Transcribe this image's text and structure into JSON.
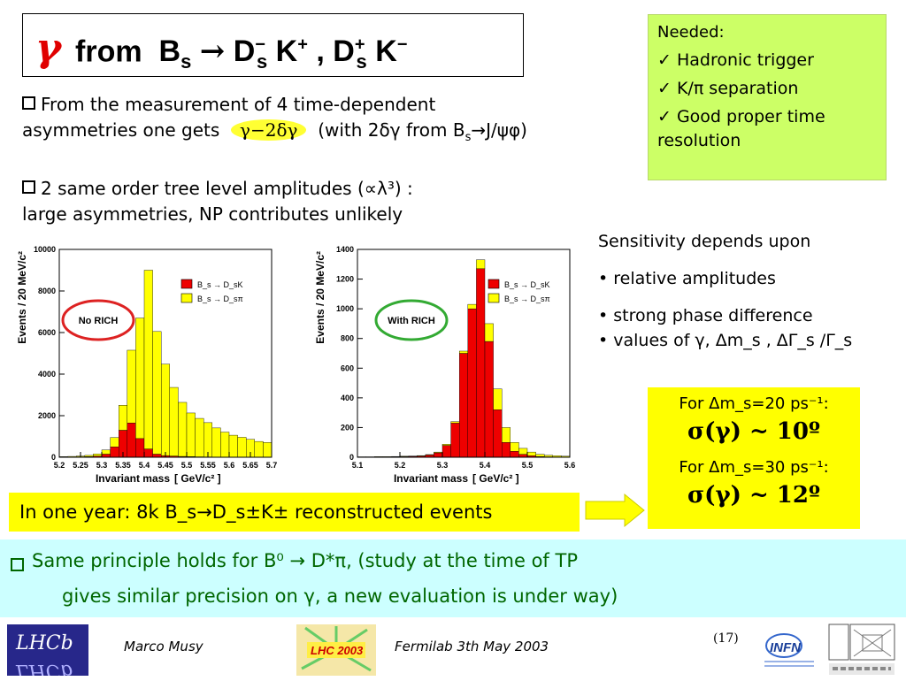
{
  "title": {
    "gamma": "γ",
    "from": "from",
    "text": "B_s → D⁻_s K⁺ , D⁺_s K⁻"
  },
  "needed": {
    "heading": "Needed:",
    "items": [
      "✓ Hadronic trigger",
      "✓ K/π separation",
      "✓ Good proper time resolution"
    ]
  },
  "bullets": {
    "b1_line1": "From the measurement of 4 time-dependent",
    "b1_line2_pre": "asymmetries one gets",
    "b1_highlight": "γ−2δγ",
    "b1_line2_post": "(with 2δγ from B",
    "b1_sub": "s",
    "b1_tail": "→J/ψφ)",
    "b2_line1": "2 same order tree level amplitudes (∝λ³) :",
    "b2_line2": "large asymmetries, NP contributes unlikely"
  },
  "sensitivity": {
    "heading": "Sensitivity depends upon",
    "items": [
      "• relative amplitudes",
      "• strong phase difference",
      "• values of γ, Δm_s , ΔΓ_s /Γ_s"
    ]
  },
  "for_box": {
    "l1": "For Δm_s=20 ps⁻¹:",
    "r1": "σ(γ) ~ 10º",
    "l2": "For Δm_s=30 ps⁻¹:",
    "r2": "σ(γ) ~ 12º"
  },
  "year_box": {
    "text": "In one year:   8k  B_s→D_s±K±  reconstructed events"
  },
  "bottom": {
    "line1": "Same principle holds for B⁰ → D*π,  (study at the time of TP",
    "line2": "gives similar precision on γ,  a new evaluation is under way)"
  },
  "footer": {
    "author": "Marco Musy",
    "event": "Fermilab 3th May 2003",
    "page": "(17)",
    "logo_lhc2003": "LHC 2003",
    "logo_lhcb": "LHCb",
    "logo_infn": "INFN"
  },
  "colors": {
    "bs_dsk": "#ee0000",
    "bs_dspi": "#ffff00",
    "accent_green": "#006600",
    "needed_bg": "#ccff66"
  },
  "chart_data": [
    {
      "type": "bar",
      "stacked": true,
      "annotation": "No RICH",
      "xlabel": "Invariant mass",
      "xunit": "[ GeV/c² ]",
      "ylabel": "Events / 20 MeV/c²",
      "xlim": [
        5.2,
        5.7
      ],
      "ylim": [
        0,
        10000
      ],
      "xticks": [
        "5.2",
        "5.25",
        "5.3",
        "5.35",
        "5.4",
        "5.45",
        "5.5",
        "5.55",
        "5.6",
        "5.65",
        "5.7"
      ],
      "yticks": [
        "0",
        "2000",
        "4000",
        "6000",
        "8000",
        "10000"
      ],
      "legend": [
        "B_s → D_sK",
        "B_s → D_sπ"
      ],
      "bin_edges": [
        5.2,
        5.22,
        5.24,
        5.26,
        5.28,
        5.3,
        5.32,
        5.34,
        5.36,
        5.38,
        5.4,
        5.42,
        5.44,
        5.46,
        5.48,
        5.5,
        5.52,
        5.54,
        5.56,
        5.58,
        5.6,
        5.62,
        5.64,
        5.66,
        5.68,
        5.7
      ],
      "series": [
        {
          "name": "B_s → D_sK",
          "values": [
            10,
            10,
            20,
            30,
            60,
            150,
            500,
            1300,
            1650,
            900,
            400,
            150,
            80,
            60,
            40,
            30,
            20,
            15,
            10,
            10,
            10,
            10,
            10,
            10,
            10
          ]
        },
        {
          "name": "B_s → D_sπ",
          "values": [
            20,
            30,
            40,
            60,
            100,
            200,
            450,
            1200,
            3500,
            5800,
            8600,
            5900,
            4400,
            3300,
            2600,
            2100,
            1850,
            1650,
            1400,
            1200,
            1050,
            950,
            850,
            750,
            700
          ]
        }
      ]
    },
    {
      "type": "bar",
      "stacked": true,
      "annotation": "With RICH",
      "xlabel": "Invariant mass",
      "xunit": "[ GeV/c² ]",
      "ylabel": "Events / 20 MeV/c²",
      "xlim": [
        5.1,
        5.6
      ],
      "ylim": [
        0,
        1400
      ],
      "xticks": [
        "5.1",
        "5.2",
        "5.3",
        "5.4",
        "5.5",
        "5.6"
      ],
      "yticks": [
        "0",
        "200",
        "400",
        "600",
        "800",
        "1000",
        "1200",
        "1400"
      ],
      "legend": [
        "B_s → D_sK",
        "B_s → D_sπ"
      ],
      "bin_edges": [
        5.1,
        5.12,
        5.14,
        5.16,
        5.18,
        5.2,
        5.22,
        5.24,
        5.26,
        5.28,
        5.3,
        5.32,
        5.34,
        5.36,
        5.38,
        5.4,
        5.42,
        5.44,
        5.46,
        5.48,
        5.5,
        5.52,
        5.54,
        5.56,
        5.58,
        5.6
      ],
      "series": [
        {
          "name": "B_s → D_sK",
          "values": [
            2,
            2,
            3,
            3,
            4,
            5,
            6,
            8,
            15,
            30,
            80,
            230,
            700,
            1000,
            1270,
            780,
            320,
            100,
            40,
            20,
            10,
            5,
            3,
            2,
            2
          ]
        },
        {
          "name": "B_s → D_sπ",
          "values": [
            1,
            1,
            1,
            1,
            1,
            2,
            2,
            3,
            3,
            5,
            8,
            10,
            15,
            30,
            60,
            120,
            140,
            100,
            60,
            40,
            25,
            15,
            10,
            8,
            5
          ]
        }
      ]
    }
  ]
}
